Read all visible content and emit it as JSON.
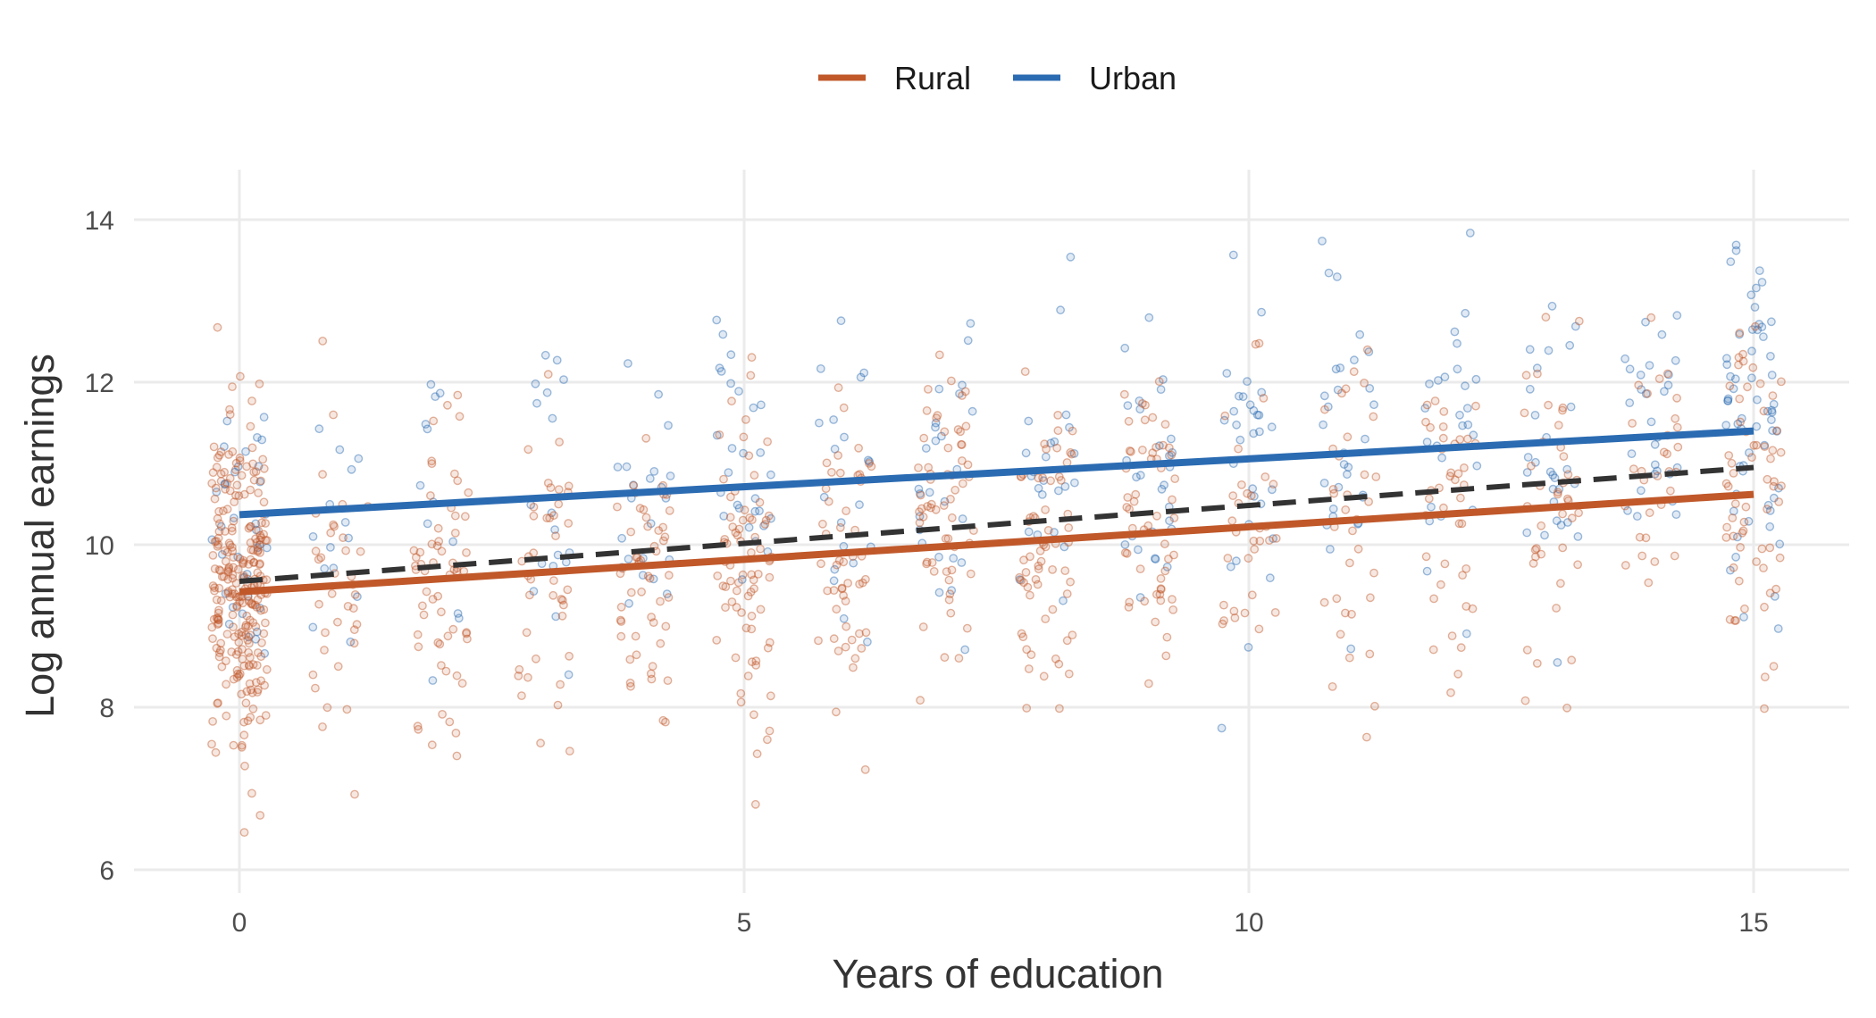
{
  "chart_data": {
    "type": "scatter",
    "title": "",
    "xlabel": "Years of education",
    "ylabel": "Log annual earnings",
    "xlim": [
      -1,
      16
    ],
    "ylim": [
      5.8,
      14.5
    ],
    "x_ticks": [
      0,
      5,
      10,
      15
    ],
    "x_tick_labels": [
      "0",
      "5",
      "10",
      "15"
    ],
    "y_ticks": [
      6,
      8,
      10,
      12,
      14
    ],
    "y_tick_labels": [
      "6",
      "8",
      "10",
      "12",
      "14"
    ],
    "grid": true,
    "legend_position": "top",
    "series": [
      {
        "name": "Rural",
        "color": "#C0582A",
        "trend": {
          "x": [
            0,
            15
          ],
          "y": [
            9.42,
            10.62
          ]
        },
        "points_by_education": [
          {
            "x": 0,
            "n": 260,
            "mean": 9.45,
            "sd": 1.05
          },
          {
            "x": 1,
            "n": 36,
            "mean": 9.35,
            "sd": 1.0
          },
          {
            "x": 2,
            "n": 60,
            "mean": 9.5,
            "sd": 1.0
          },
          {
            "x": 3,
            "n": 40,
            "mean": 9.55,
            "sd": 1.0
          },
          {
            "x": 4,
            "n": 52,
            "mean": 9.65,
            "sd": 1.05
          },
          {
            "x": 5,
            "n": 75,
            "mean": 9.8,
            "sd": 1.05
          },
          {
            "x": 6,
            "n": 50,
            "mean": 9.85,
            "sd": 1.0
          },
          {
            "x": 7,
            "n": 60,
            "mean": 10.0,
            "sd": 1.05
          },
          {
            "x": 8,
            "n": 64,
            "mean": 10.0,
            "sd": 1.0
          },
          {
            "x": 9,
            "n": 55,
            "mean": 10.1,
            "sd": 1.0
          },
          {
            "x": 10,
            "n": 32,
            "mean": 10.2,
            "sd": 1.0
          },
          {
            "x": 11,
            "n": 34,
            "mean": 10.25,
            "sd": 1.0
          },
          {
            "x": 12,
            "n": 40,
            "mean": 10.4,
            "sd": 1.05
          },
          {
            "x": 13,
            "n": 40,
            "mean": 10.5,
            "sd": 1.05
          },
          {
            "x": 14,
            "n": 30,
            "mean": 10.55,
            "sd": 1.0
          },
          {
            "x": 15,
            "n": 62,
            "mean": 10.6,
            "sd": 1.0
          }
        ]
      },
      {
        "name": "Urban",
        "color": "#2B6BB2",
        "trend": {
          "x": [
            0,
            15
          ],
          "y": [
            10.37,
            11.4
          ]
        },
        "points_by_education": [
          {
            "x": 0,
            "n": 36,
            "mean": 10.35,
            "sd": 0.95
          },
          {
            "x": 1,
            "n": 14,
            "mean": 10.45,
            "sd": 0.9
          },
          {
            "x": 2,
            "n": 12,
            "mean": 10.5,
            "sd": 0.9
          },
          {
            "x": 3,
            "n": 18,
            "mean": 10.55,
            "sd": 0.95
          },
          {
            "x": 4,
            "n": 22,
            "mean": 10.65,
            "sd": 0.95
          },
          {
            "x": 5,
            "n": 28,
            "mean": 10.75,
            "sd": 0.95
          },
          {
            "x": 6,
            "n": 20,
            "mean": 10.8,
            "sd": 0.9
          },
          {
            "x": 7,
            "n": 26,
            "mean": 10.9,
            "sd": 0.95
          },
          {
            "x": 8,
            "n": 24,
            "mean": 10.95,
            "sd": 0.9
          },
          {
            "x": 9,
            "n": 28,
            "mean": 11.0,
            "sd": 0.95
          },
          {
            "x": 10,
            "n": 30,
            "mean": 11.05,
            "sd": 0.95
          },
          {
            "x": 11,
            "n": 30,
            "mean": 11.15,
            "sd": 0.95
          },
          {
            "x": 12,
            "n": 26,
            "mean": 11.2,
            "sd": 0.95
          },
          {
            "x": 13,
            "n": 28,
            "mean": 11.3,
            "sd": 0.95
          },
          {
            "x": 14,
            "n": 28,
            "mean": 11.35,
            "sd": 0.95
          },
          {
            "x": 15,
            "n": 60,
            "mean": 11.4,
            "sd": 0.95
          }
        ]
      }
    ],
    "overall_trend": {
      "x": [
        0,
        15
      ],
      "y": [
        9.55,
        10.95
      ],
      "color": "#333333",
      "style": "dashed"
    }
  }
}
